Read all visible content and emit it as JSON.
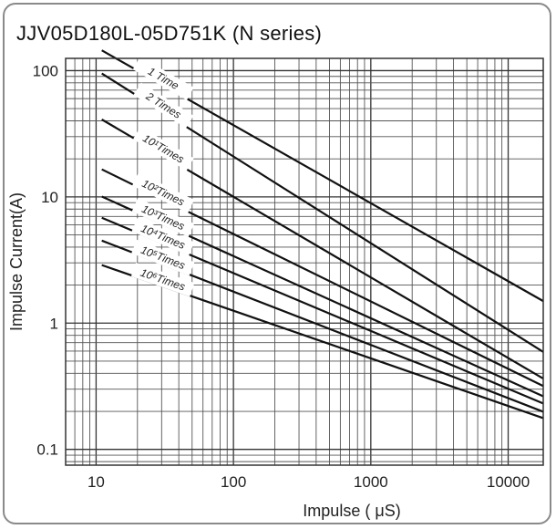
{
  "chart_data": {
    "type": "line",
    "title": "JJV05D180L-05D751K (N series)",
    "xlabel": "Impulse ( μS)",
    "ylabel": "Impulse Current(A)",
    "x_scale": "log",
    "y_scale": "log",
    "xlim": [
      6,
      18000
    ],
    "ylim": [
      0.075,
      125
    ],
    "grid": true,
    "x_ticks": [
      {
        "value": 10,
        "label": "10"
      },
      {
        "value": 100,
        "label": "100"
      },
      {
        "value": 1000,
        "label": "1000"
      },
      {
        "value": 10000,
        "label": "10000"
      }
    ],
    "y_ticks": [
      {
        "value": 100,
        "label": "100"
      },
      {
        "value": 10,
        "label": "10"
      },
      {
        "value": 1,
        "label": "1"
      },
      {
        "value": 0.1,
        "label": "0.1"
      }
    ],
    "series": [
      {
        "name": "1 Time",
        "x": [
          20,
          20000
        ],
        "y": [
          100,
          1.4
        ]
      },
      {
        "name": "2 Times",
        "x": [
          20,
          20000
        ],
        "y": [
          63,
          0.55
        ]
      },
      {
        "name": "10¹Times",
        "x": [
          20,
          20000
        ],
        "y": [
          28,
          0.34
        ]
      },
      {
        "name": "10²Times",
        "x": [
          20,
          20000
        ],
        "y": [
          12,
          0.3
        ]
      },
      {
        "name": "10³Times",
        "x": [
          20,
          20000
        ],
        "y": [
          7.5,
          0.25
        ]
      },
      {
        "name": "10⁴Times",
        "x": [
          20,
          20000
        ],
        "y": [
          5.2,
          0.22
        ]
      },
      {
        "name": "10⁵Times",
        "x": [
          20,
          20000
        ],
        "y": [
          3.5,
          0.19
        ]
      },
      {
        "name": "10⁶Times",
        "x": [
          20,
          20000
        ],
        "y": [
          2.3,
          0.17
        ]
      }
    ]
  }
}
